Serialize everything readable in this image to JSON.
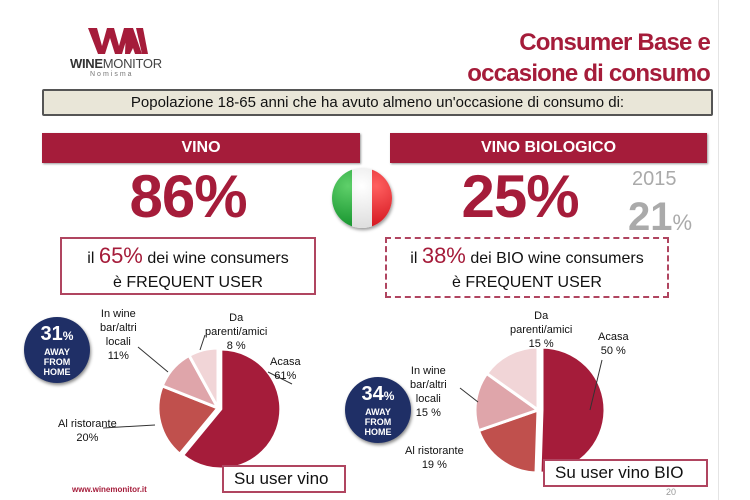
{
  "logo": {
    "brand_bold": "WINE",
    "brand_rest": "MONITOR",
    "sub": "Nomisma"
  },
  "title": {
    "line1": "Consumer Base e",
    "line2": "occasione di consumo"
  },
  "subtitle": "Popolazione 18-65 anni che ha avuto almeno un'occasione di consumo di:",
  "vino": {
    "label": "VINO",
    "value": "86%",
    "frequent_pre": "il",
    "frequent_value": "65%",
    "frequent_post": "dei wine consumers",
    "frequent_line2": "è FREQUENT USER",
    "away_value": "31",
    "away_unit": "%",
    "away_label1": "AWAY",
    "away_label2": "FROM",
    "away_label3": "HOME",
    "base_label": "Su user vino"
  },
  "bio": {
    "label": "VINO BIOLOGICO",
    "value": "25%",
    "prev_year": "2015",
    "prev_value": "21",
    "prev_unit": "%",
    "frequent_pre": "il",
    "frequent_value": "38%",
    "frequent_post": "dei BIO wine consumers",
    "frequent_line2": "è FREQUENT USER",
    "away_value": "34",
    "away_unit": "%",
    "away_label1": "AWAY",
    "away_label2": "FROM",
    "away_label3": "HOME",
    "base_label": "Su user vino BIO"
  },
  "footer": {
    "url": "www.winemonitor.it",
    "page": "20"
  },
  "colors": {
    "accent": "#a51c3a",
    "navy": "#1f2f66"
  },
  "chart_data": [
    {
      "type": "pie",
      "title": "Su user vino",
      "categories": [
        "A casa",
        "Al ristorante",
        "In wine bar/altri locali",
        "Da parenti/amici"
      ],
      "labels": [
        [
          "Acasa",
          "61%"
        ],
        [
          "Al ristorante",
          "20%"
        ],
        [
          "In wine",
          "bar/altri",
          "locali",
          "11%"
        ],
        [
          "Da",
          "parenti/amici",
          "8 %"
        ]
      ],
      "values": [
        61,
        20,
        11,
        8
      ],
      "colors": [
        "#a51c3a",
        "#c0504d",
        "#dfa5aa",
        "#f1d5d7"
      ]
    },
    {
      "type": "pie",
      "title": "Su user vino BIO",
      "categories": [
        "A casa",
        "Al ristorante",
        "In wine bar/altri locali",
        "Da parenti/amici"
      ],
      "labels": [
        [
          "Acasa",
          "50 %"
        ],
        [
          "Al ristorante",
          "19 %"
        ],
        [
          "In wine",
          "bar/altri",
          "locali",
          "15 %"
        ],
        [
          "Da",
          "parenti/amici",
          "15 %"
        ]
      ],
      "values": [
        50,
        19,
        15,
        15
      ],
      "colors": [
        "#a51c3a",
        "#c0504d",
        "#dfa5aa",
        "#f1d5d7"
      ]
    }
  ]
}
